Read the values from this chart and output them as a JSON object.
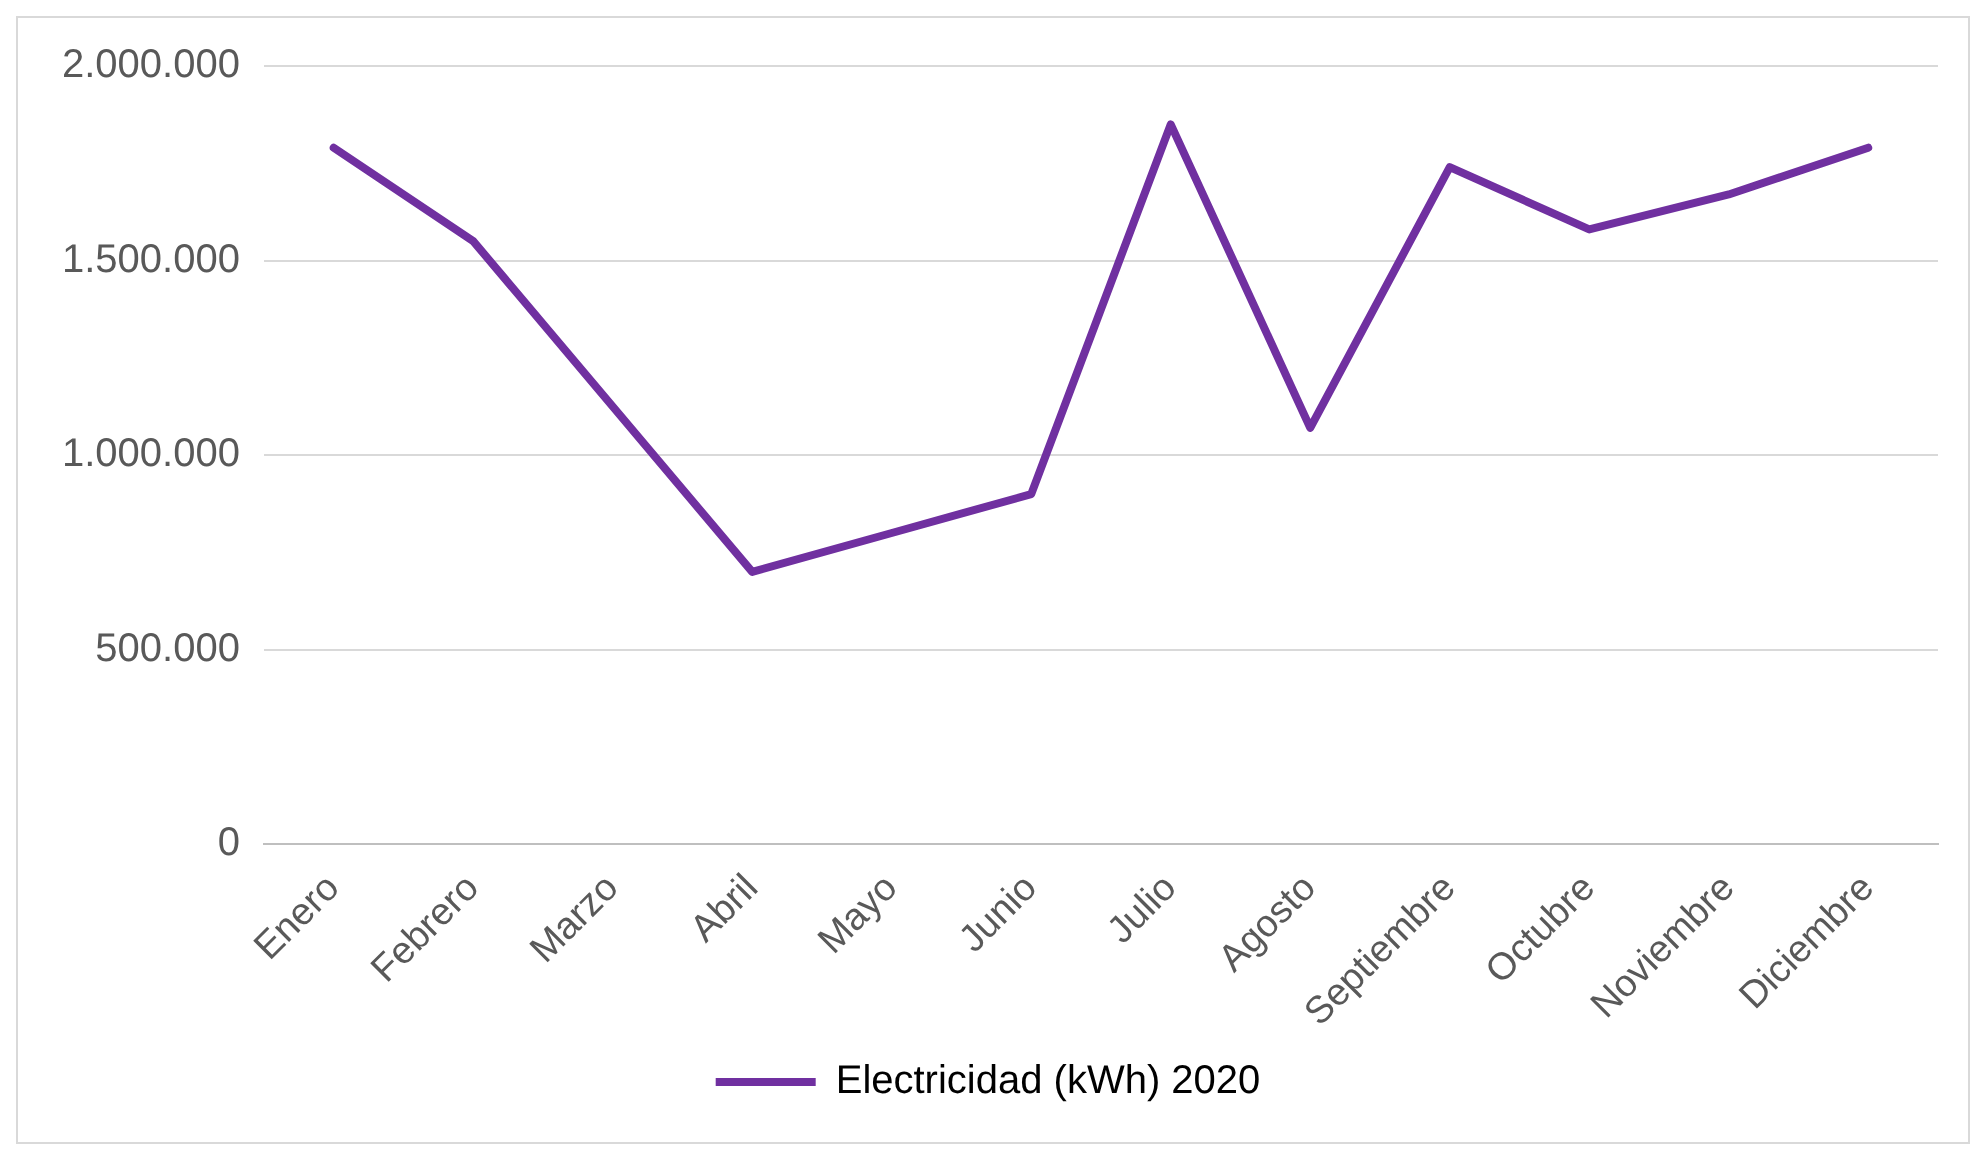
{
  "chart_data": {
    "type": "line",
    "categories": [
      "Enero",
      "Febrero",
      "Marzo",
      "Abril",
      "Mayo",
      "Junio",
      "Julio",
      "Agosto",
      "Septiembre",
      "Octubre",
      "Noviembre",
      "Diciembre"
    ],
    "series": [
      {
        "name": "Electricidad (kWh) 2020",
        "color": "#7030a0",
        "values": [
          1790000,
          1550000,
          1125000,
          700000,
          800000,
          900000,
          1850000,
          1070000,
          1740000,
          1580000,
          1670000,
          1790000
        ]
      }
    ],
    "ylim": [
      0,
      2000000
    ],
    "yticks": [
      0,
      {
        "value": 500000,
        "label": "500.000"
      },
      {
        "value": 1000000,
        "label": "1.000.000"
      },
      {
        "value": 1500000,
        "label": "1.500.000"
      },
      {
        "value": 2000000,
        "label": "2.000.000"
      }
    ],
    "grid": "y",
    "legend": "bottom",
    "marker": "none",
    "line_style": "solid"
  }
}
